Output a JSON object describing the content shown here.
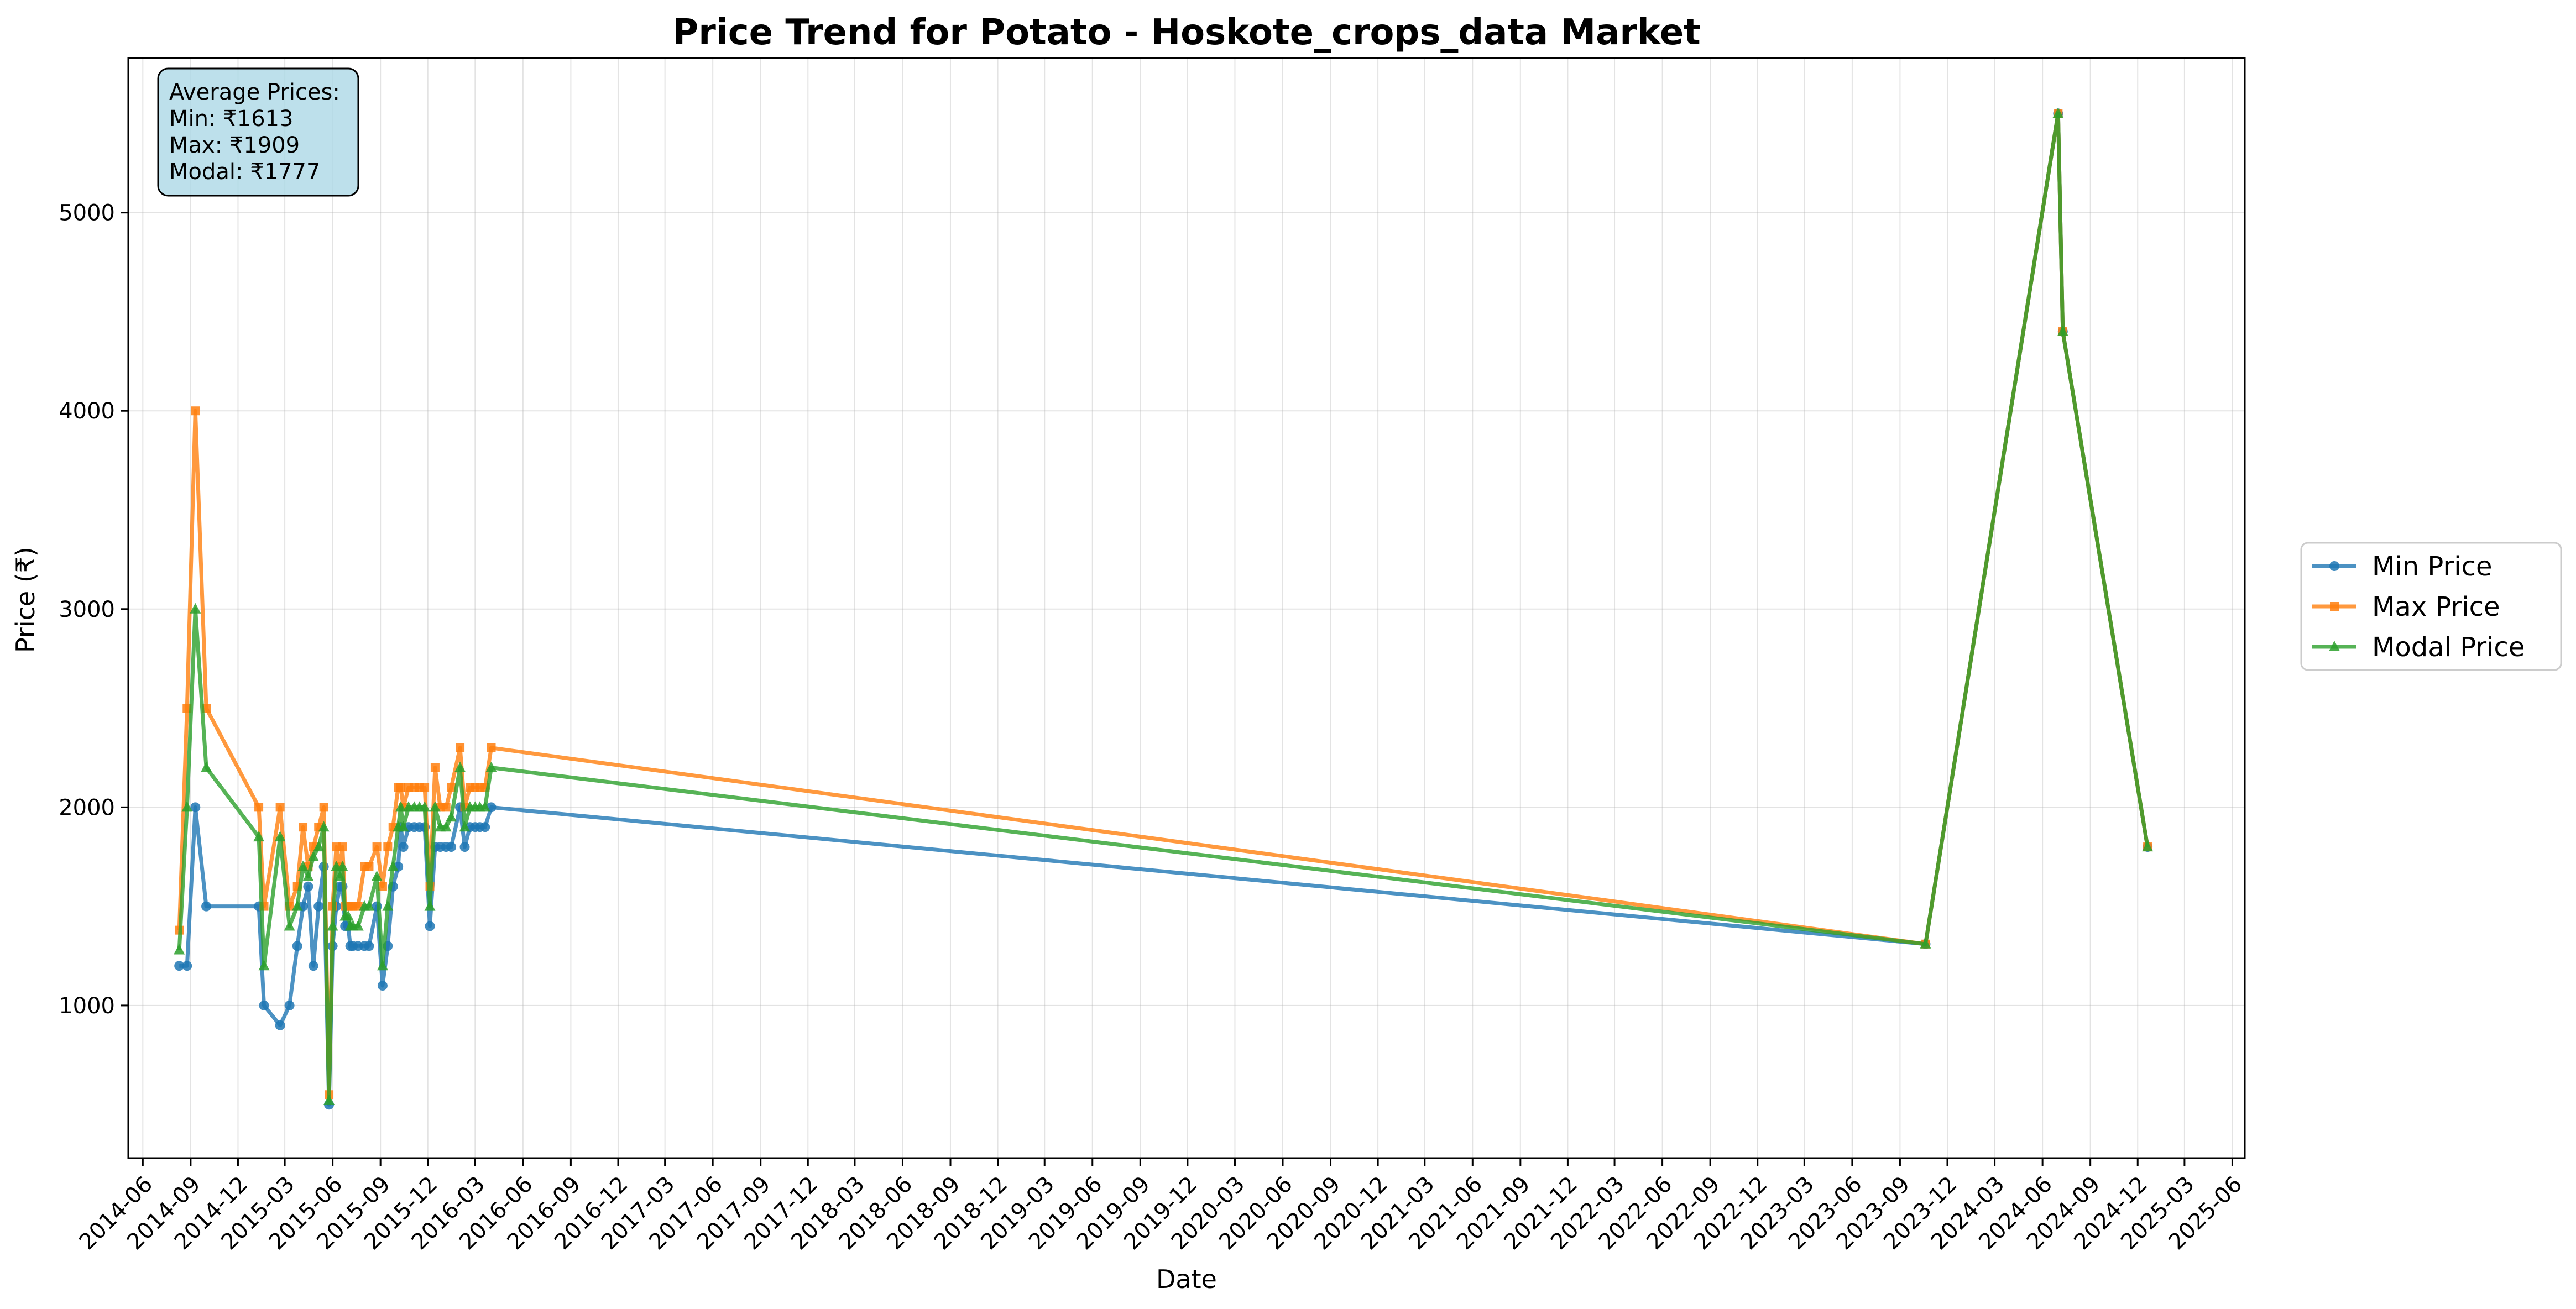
{
  "chart_data": {
    "type": "line",
    "title": "Price Trend for Potato - Hoskote_crops_data Market",
    "xlabel": "Date",
    "ylabel": "Price (₹)",
    "ylim": [
      230,
      5780
    ],
    "xlim": [
      "2014-05-04",
      "2025-06-25"
    ],
    "yticks": [
      1000,
      2000,
      3000,
      4000,
      5000
    ],
    "xticks": [
      "2014-06",
      "2014-09",
      "2014-12",
      "2015-03",
      "2015-06",
      "2015-09",
      "2015-12",
      "2016-03",
      "2016-06",
      "2016-09",
      "2016-12",
      "2017-03",
      "2017-06",
      "2017-09",
      "2017-12",
      "2018-03",
      "2018-06",
      "2018-09",
      "2018-12",
      "2019-03",
      "2019-06",
      "2019-09",
      "2019-12",
      "2020-03",
      "2020-06",
      "2020-09",
      "2020-12",
      "2021-03",
      "2021-06",
      "2021-09",
      "2021-12",
      "2022-03",
      "2022-06",
      "2022-09",
      "2022-12",
      "2023-03",
      "2023-06",
      "2023-09",
      "2023-12",
      "2024-03",
      "2024-06",
      "2024-09",
      "2024-12",
      "2025-03",
      "2025-06"
    ],
    "grid": true,
    "legend_placement": "outside-right",
    "stats_box": {
      "lines": [
        "Average Prices:",
        "Min: ₹1613",
        "Max: ₹1909",
        "Modal: ₹1777"
      ],
      "background": "#add8e6"
    },
    "x": [
      "2014-08-10",
      "2014-08-25",
      "2014-09-10",
      "2014-10-01",
      "2015-01-10",
      "2015-01-20",
      "2015-02-20",
      "2015-03-10",
      "2015-03-25",
      "2015-04-05",
      "2015-04-15",
      "2015-04-25",
      "2015-05-05",
      "2015-05-15",
      "2015-05-25",
      "2015-06-01",
      "2015-06-08",
      "2015-06-15",
      "2015-06-20",
      "2015-06-25",
      "2015-07-01",
      "2015-07-05",
      "2015-07-10",
      "2015-07-20",
      "2015-08-01",
      "2015-08-10",
      "2015-08-25",
      "2015-09-05",
      "2015-09-15",
      "2015-09-25",
      "2015-10-05",
      "2015-10-10",
      "2015-10-15",
      "2015-10-25",
      "2015-11-05",
      "2015-11-15",
      "2015-11-25",
      "2015-12-05",
      "2015-12-15",
      "2015-12-25",
      "2016-01-05",
      "2016-01-15",
      "2016-02-01",
      "2016-02-10",
      "2016-02-20",
      "2016-03-01",
      "2016-03-10",
      "2016-03-20",
      "2016-04-01",
      "2023-10-20",
      "2024-07-01",
      "2024-07-10",
      "2024-12-20"
    ],
    "series": [
      {
        "name": "Min Price",
        "color": "#1f77b4",
        "marker": "circle",
        "values": [
          1200,
          1200,
          2000,
          1500,
          1500,
          1000,
          900,
          1000,
          1300,
          1500,
          1600,
          1200,
          1500,
          1700,
          500,
          1300,
          1500,
          1600,
          1600,
          1400,
          1400,
          1300,
          1300,
          1300,
          1300,
          1300,
          1500,
          1100,
          1300,
          1600,
          1700,
          1900,
          1800,
          1900,
          1900,
          1900,
          1900,
          1400,
          1800,
          1800,
          1800,
          1800,
          2000,
          1800,
          1900,
          1900,
          1900,
          1900,
          2000,
          1310,
          5500,
          4400,
          1800
        ]
      },
      {
        "name": "Max Price",
        "color": "#ff7f0e",
        "marker": "square",
        "values": [
          1380,
          2500,
          4000,
          2500,
          2000,
          1500,
          2000,
          1500,
          1600,
          1900,
          1700,
          1800,
          1900,
          2000,
          550,
          1500,
          1800,
          1700,
          1800,
          1500,
          1500,
          1500,
          1500,
          1500,
          1700,
          1700,
          1800,
          1600,
          1800,
          1900,
          2100,
          2100,
          2000,
          2100,
          2100,
          2100,
          2100,
          1600,
          2200,
          2000,
          2000,
          2100,
          2300,
          2000,
          2100,
          2100,
          2100,
          2100,
          2300,
          1310,
          5500,
          4400,
          1800
        ]
      },
      {
        "name": "Modal Price",
        "color": "#2ca02c",
        "marker": "triangle",
        "values": [
          1280,
          2000,
          3000,
          2200,
          1850,
          1200,
          1850,
          1400,
          1500,
          1700,
          1650,
          1750,
          1800,
          1900,
          520,
          1400,
          1700,
          1650,
          1700,
          1450,
          1450,
          1400,
          1400,
          1400,
          1500,
          1500,
          1650,
          1200,
          1500,
          1700,
          1900,
          2000,
          1900,
          2000,
          2000,
          2000,
          2000,
          1500,
          2000,
          1900,
          1900,
          1950,
          2200,
          1900,
          2000,
          2000,
          2000,
          2000,
          2200,
          1310,
          5500,
          4400,
          1800
        ]
      }
    ]
  }
}
